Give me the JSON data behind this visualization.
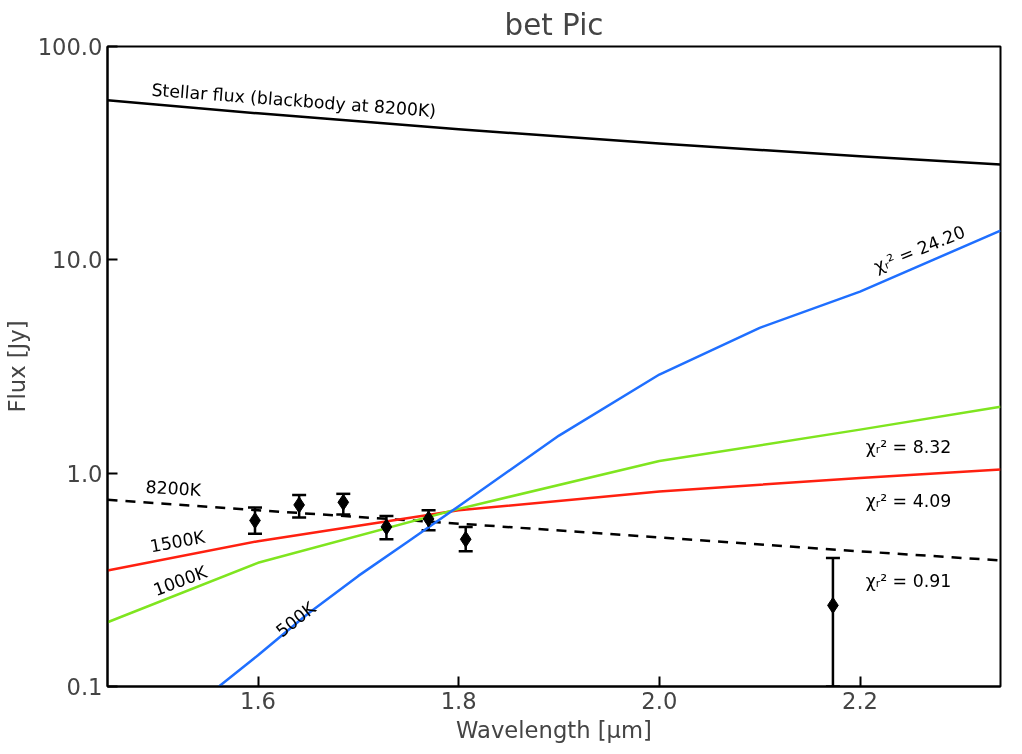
{
  "chart_data": {
    "type": "line",
    "title": "bet Pic",
    "xlabel": "Wavelength [μm]",
    "ylabel": "Flux [Jy]",
    "log": "y",
    "grid": false,
    "legend": false,
    "xlim": [
      1.45,
      2.34
    ],
    "xticks": [
      1.6,
      1.8,
      {
        "value": 2.0,
        "label": "2.0"
      },
      2.2
    ],
    "ylim": [
      0.1,
      100
    ],
    "yticks": [
      {
        "value": 0.1,
        "label": "0.1"
      },
      {
        "value": 1,
        "label": "1.0"
      },
      {
        "value": 10,
        "label": "10.0"
      },
      {
        "value": 100,
        "label": "100.0"
      }
    ],
    "series": [
      {
        "name": "Stellar flux (blackbody at 8200K)",
        "color": "#000000",
        "line_style": "solid",
        "x": [
          1.45,
          1.6,
          1.8,
          2.0,
          2.2,
          2.34
        ],
        "values": [
          56,
          48.6,
          40.9,
          35.1,
          30.6,
          28
        ]
      },
      {
        "name": "8200K",
        "color": "#000000",
        "line_style": "dashed",
        "x": [
          1.45,
          1.6,
          1.8,
          2.0,
          2.2,
          2.34
        ],
        "values": [
          0.75,
          0.67,
          0.58,
          0.5,
          0.43,
          0.39
        ]
      },
      {
        "name": "1500K",
        "color": "#ff2010",
        "line_style": "solid",
        "x": [
          1.45,
          1.6,
          1.8,
          2.0,
          2.2,
          2.34
        ],
        "values": [
          0.35,
          0.48,
          0.67,
          0.82,
          0.95,
          1.04
        ]
      },
      {
        "name": "1000K",
        "color": "#7fe51f",
        "line_style": "solid",
        "x": [
          1.45,
          1.6,
          1.8,
          2.0,
          2.2,
          2.34
        ],
        "values": [
          0.2,
          0.38,
          0.68,
          1.14,
          1.6,
          2.05
        ]
      },
      {
        "name": "500K",
        "color": "#1f6fff",
        "line_style": "solid",
        "x": [
          1.561,
          1.6,
          1.65,
          1.7,
          1.75,
          1.8,
          1.9,
          2.0,
          2.1,
          2.2,
          2.34
        ],
        "values": [
          0.1,
          0.14,
          0.22,
          0.33,
          0.48,
          0.7,
          1.5,
          2.9,
          4.8,
          7.1,
          13.7
        ]
      },
      {
        "type": "scatter",
        "color": "#000000",
        "marker": "diamond",
        "x": [
          1.597,
          1.641,
          1.685,
          1.728,
          1.77,
          1.807,
          2.173
        ],
        "values": [
          0.6,
          0.71,
          0.73,
          0.56,
          0.61,
          0.49,
          0.24
        ],
        "errors": [
          [
            0.52,
            0.69
          ],
          [
            0.62,
            0.79
          ],
          [
            0.64,
            0.8
          ],
          [
            0.49,
            0.63
          ],
          [
            0.54,
            0.67
          ],
          [
            0.43,
            0.56
          ],
          [
            0.1,
            0.4
          ]
        ]
      }
    ],
    "annotations": [
      "χᵣ² = 24.20",
      "χᵣ² =  8.32",
      "χᵣ² =  4.09",
      "χᵣ² =  0.91"
    ]
  }
}
